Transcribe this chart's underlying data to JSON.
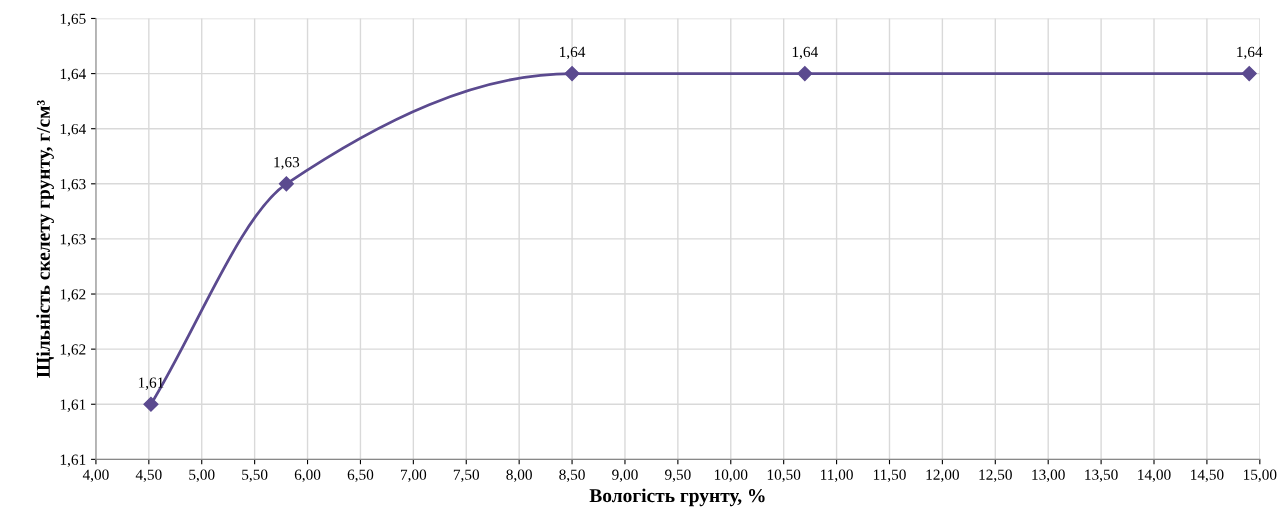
{
  "chart_data": {
    "type": "line",
    "xlabel": "Вологість грунту, %",
    "ylabel": "Щільність скелету грунту, г/см³",
    "x": [
      4.52,
      5.8,
      8.5,
      10.7,
      14.9
    ],
    "series": [
      {
        "color": "#5b4a8f",
        "values": [
          1.61,
          1.63,
          1.64,
          1.64,
          1.64
        ],
        "value_labels": [
          "1,61",
          "1,63",
          "1,64",
          "1,64",
          "1,64"
        ]
      }
    ],
    "xlim": [
      4.0,
      15.0
    ],
    "xticks": [
      {
        "value": 4.0,
        "label": "4,00"
      },
      {
        "value": 4.5,
        "label": "4,50"
      },
      {
        "value": 5.0,
        "label": "5,00"
      },
      {
        "value": 5.5,
        "label": "5,50"
      },
      {
        "value": 6.0,
        "label": "6,00"
      },
      {
        "value": 6.5,
        "label": "6,50"
      },
      {
        "value": 7.0,
        "label": "7,00"
      },
      {
        "value": 7.5,
        "label": "7,50"
      },
      {
        "value": 8.0,
        "label": "8,00"
      },
      {
        "value": 8.5,
        "label": "8,50"
      },
      {
        "value": 9.0,
        "label": "9,00"
      },
      {
        "value": 9.5,
        "label": "9,50"
      },
      {
        "value": 10.0,
        "label": "10,00"
      },
      {
        "value": 10.5,
        "label": "10,50"
      },
      {
        "value": 11.0,
        "label": "11,00"
      },
      {
        "value": 11.5,
        "label": "11,50"
      },
      {
        "value": 12.0,
        "label": "12,00"
      },
      {
        "value": 12.5,
        "label": "12,50"
      },
      {
        "value": 13.0,
        "label": "13,00"
      },
      {
        "value": 13.5,
        "label": "13,50"
      },
      {
        "value": 14.0,
        "label": "14,00"
      },
      {
        "value": 14.5,
        "label": "14,50"
      },
      {
        "value": 15.0,
        "label": "15,00"
      }
    ],
    "ylim": [
      1.605,
      1.645
    ],
    "yticks": [
      {
        "value": 1.605,
        "label": "1,61"
      },
      {
        "value": 1.61,
        "label": "1,61"
      },
      {
        "value": 1.615,
        "label": "1,62"
      },
      {
        "value": 1.62,
        "label": "1,62"
      },
      {
        "value": 1.625,
        "label": "1,63"
      },
      {
        "value": 1.63,
        "label": "1,63"
      },
      {
        "value": 1.635,
        "label": "1,64"
      },
      {
        "value": 1.64,
        "label": "1,64"
      },
      {
        "value": 1.645,
        "label": "1,65"
      }
    ],
    "grid": true,
    "marker": "diamond",
    "line_style": "solid"
  }
}
